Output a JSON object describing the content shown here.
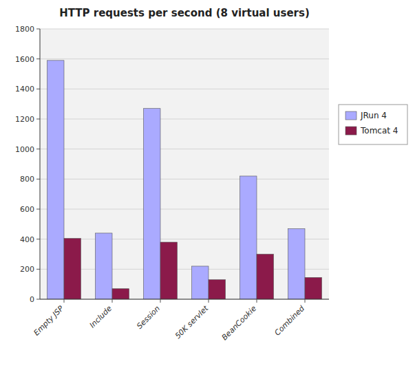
{
  "chart_data": {
    "type": "bar",
    "title": "HTTP requests per second (8 virtual users)",
    "categories": [
      "Empty JSP",
      "Include",
      "Session",
      "50K servlet",
      "BeanCookie",
      "Combined"
    ],
    "series": [
      {
        "name": "JRun 4",
        "color": "#aaaaff",
        "values": [
          1590,
          440,
          1270,
          220,
          820,
          470
        ]
      },
      {
        "name": "Tomcat 4",
        "color": "#8b1a4a",
        "values": [
          405,
          70,
          380,
          130,
          300,
          145
        ]
      }
    ],
    "ylim": [
      0,
      1800
    ],
    "yticks": [
      0,
      200,
      400,
      600,
      800,
      1000,
      1200,
      1400,
      1600,
      1800
    ],
    "grid": true,
    "legend": "right"
  }
}
